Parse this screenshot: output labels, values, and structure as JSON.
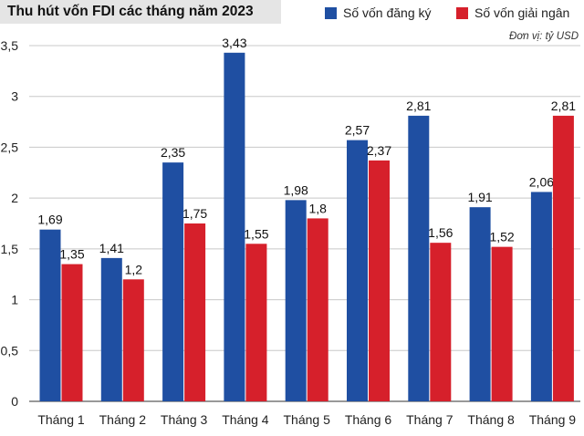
{
  "header": {
    "title": "Thu hút vốn FDI các tháng năm 2023",
    "unit": "Đơn vị: tỷ USD"
  },
  "colors": {
    "registered": "#1f4fa2",
    "disbursed": "#d6202b",
    "grid": "#c8c8c8",
    "title_bg": "#e5e5e5"
  },
  "chart_data": {
    "type": "bar",
    "title": "Thu hút vốn FDI các tháng năm 2023",
    "unit": "Đơn vị: tỷ USD",
    "categories": [
      "Tháng 1",
      "Tháng 2",
      "Tháng 3",
      "Tháng 4",
      "Tháng 5",
      "Tháng 6",
      "Tháng 7",
      "Tháng 8",
      "Tháng 9"
    ],
    "series": [
      {
        "name": "Số vốn đăng ký",
        "values": [
          1.69,
          1.41,
          2.35,
          3.43,
          1.98,
          2.57,
          2.81,
          1.91,
          2.06
        ],
        "labels": [
          "1,69",
          "1,41",
          "2,35",
          "3,43",
          "1,98",
          "2,57",
          "2,81",
          "1,91",
          "2,06"
        ]
      },
      {
        "name": "Số vốn giải ngân",
        "values": [
          1.35,
          1.2,
          1.75,
          1.55,
          1.8,
          2.37,
          1.56,
          1.52,
          2.81
        ],
        "labels": [
          "1,35",
          "1,2",
          "1,75",
          "1,55",
          "1,8",
          "2,37",
          "1,56",
          "1,52",
          "2,81"
        ]
      }
    ],
    "ylim": [
      0,
      3.5
    ],
    "yticks": [
      0,
      0.5,
      1,
      1.5,
      2,
      2.5,
      3,
      3.5
    ],
    "ytick_labels": [
      "0",
      "0,5",
      "1",
      "1,5",
      "2",
      "2,5",
      "3",
      "3,5"
    ],
    "grid": true,
    "legend": "top-right"
  }
}
